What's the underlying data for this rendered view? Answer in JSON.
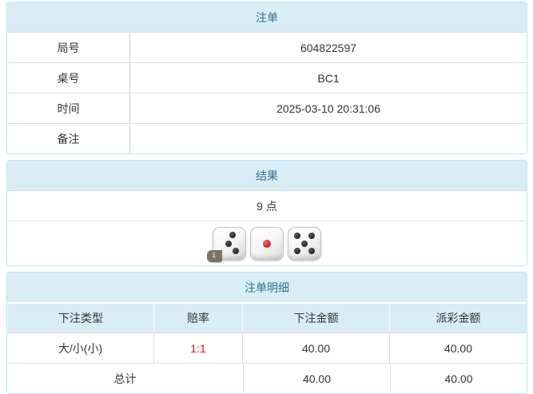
{
  "bet_slip": {
    "title": "注单",
    "rows": [
      {
        "label": "局号",
        "value": "604822597"
      },
      {
        "label": "桌号",
        "value": "BC1"
      },
      {
        "label": "时间",
        "value": "2025-03-10 20:31:06"
      },
      {
        "label": "备注",
        "value": ""
      }
    ]
  },
  "result": {
    "title": "结果",
    "points_text": "9 点",
    "dice": [
      {
        "value": 3,
        "dot_color": "black",
        "info_badge": "i"
      },
      {
        "value": 1,
        "dot_color": "red"
      },
      {
        "value": 5,
        "dot_color": "black"
      }
    ]
  },
  "bet_details": {
    "title": "注单明细",
    "columns": [
      "下注类型",
      "赔率",
      "下注金额",
      "派彩金额"
    ],
    "rows": [
      {
        "type": "大/小(小)",
        "odds": "1:1",
        "bet_amount": "40.00",
        "payout_amount": "40.00"
      }
    ],
    "total": {
      "label": "总计",
      "bet_amount": "40.00",
      "payout_amount": "40.00"
    }
  },
  "colors": {
    "panel_border": "#bce8f1",
    "header_bg": "#d9edf7",
    "header_text": "#31708f",
    "body_text": "#333333",
    "cell_border": "#dddddd",
    "odds_red": "#ff0000"
  }
}
